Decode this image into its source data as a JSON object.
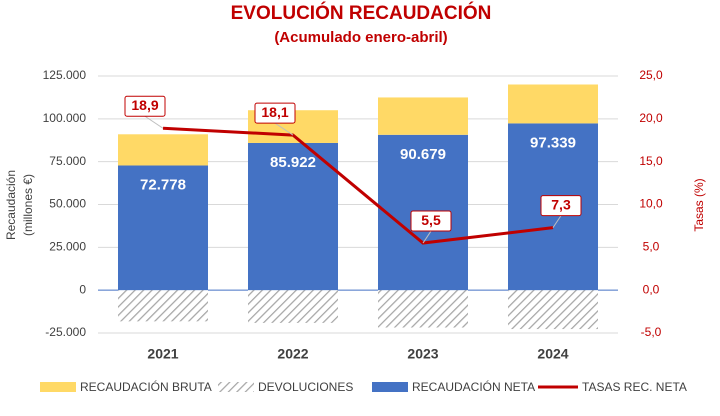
{
  "chart_data": {
    "type": "bar",
    "title": "EVOLUCIÓN RECAUDACIÓN",
    "subtitle": "(Acumulado enero-abril)",
    "ylabel": [
      "Recaudación",
      "(millones €)"
    ],
    "y2label": "Tasas (%)",
    "categories": [
      "2021",
      "2022",
      "2023",
      "2024"
    ],
    "series": [
      {
        "name": "RECAUDACIÓN BRUTA",
        "color": "#ffd966",
        "values": [
          18200,
          19100,
          21800,
          22700
        ]
      },
      {
        "name": "DEVOLUCIONES",
        "color": "#a6a6a6",
        "pattern": "hatch",
        "values": [
          -18200,
          -19100,
          -21800,
          -22700
        ]
      },
      {
        "name": "RECAUDACIÓN NETA",
        "color": "#4472c4",
        "values": [
          72778,
          85922,
          90679,
          97339
        ],
        "value_labels": [
          "72.778",
          "85.922",
          "90.679",
          "97.339"
        ]
      },
      {
        "name": "TASAS REC. NETA",
        "color": "#c00000",
        "type": "line",
        "axis": "y2",
        "values": [
          18.9,
          18.1,
          5.5,
          7.3
        ],
        "value_labels": [
          "18,9",
          "18,1",
          "5,5",
          "7,3"
        ]
      }
    ],
    "ylim": [
      -25000,
      125000
    ],
    "yticks": [
      {
        "value": -25000,
        "label": "-25.000"
      },
      0,
      {
        "value": 25000,
        "label": "25.000"
      },
      {
        "value": 50000,
        "label": "50.000"
      },
      {
        "value": 75000,
        "label": "75.000"
      },
      {
        "value": 100000,
        "label": "100.000"
      },
      {
        "value": 125000,
        "label": "125.000"
      }
    ],
    "y2lim": [
      -5,
      25
    ],
    "y2ticks": [
      {
        "value": -5,
        "label": "-5,0"
      },
      {
        "value": 0,
        "label": "0,0"
      },
      {
        "value": 5,
        "label": "5,0"
      },
      {
        "value": 10,
        "label": "10,0"
      },
      {
        "value": 15,
        "label": "15,0"
      },
      {
        "value": 20,
        "label": "20,0"
      },
      {
        "value": 25,
        "label": "25,0"
      }
    ],
    "grid": true
  }
}
